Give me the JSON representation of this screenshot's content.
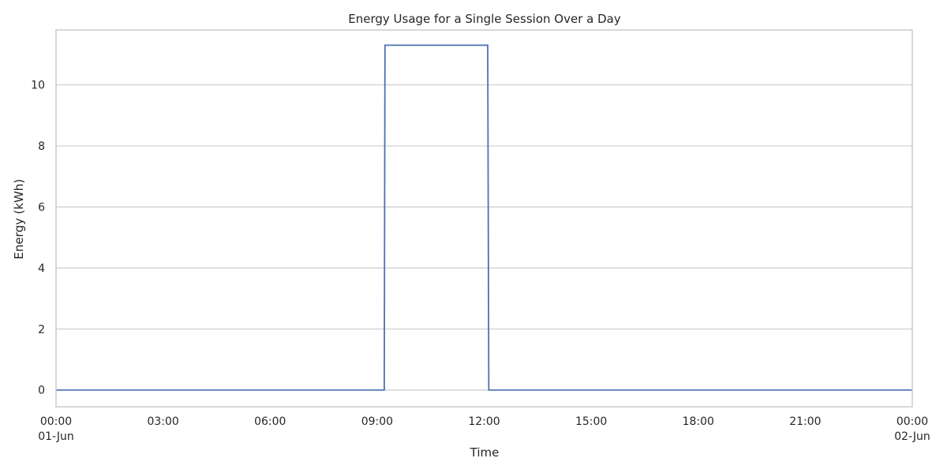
{
  "chart_data": {
    "type": "line",
    "title": "Energy Usage for a Single Session Over a Day",
    "xlabel": "Time",
    "ylabel": "Energy (kWh)",
    "grid": "horizontal",
    "x_unit": "hours since 00:00 01-Jun",
    "xlim": [
      0,
      24
    ],
    "ylim": [
      -0.55,
      11.8
    ],
    "x_ticks": [
      {
        "value": 0,
        "label": "00:00",
        "sublabel": "01-Jun"
      },
      {
        "value": 3,
        "label": "03:00",
        "sublabel": ""
      },
      {
        "value": 6,
        "label": "06:00",
        "sublabel": ""
      },
      {
        "value": 9,
        "label": "09:00",
        "sublabel": ""
      },
      {
        "value": 12,
        "label": "12:00",
        "sublabel": ""
      },
      {
        "value": 15,
        "label": "15:00",
        "sublabel": ""
      },
      {
        "value": 18,
        "label": "18:00",
        "sublabel": ""
      },
      {
        "value": 21,
        "label": "21:00",
        "sublabel": ""
      },
      {
        "value": 24,
        "label": "00:00",
        "sublabel": "02-Jun"
      }
    ],
    "y_ticks": [
      {
        "value": 0,
        "label": "0"
      },
      {
        "value": 2,
        "label": "2"
      },
      {
        "value": 4,
        "label": "4"
      },
      {
        "value": 6,
        "label": "6"
      },
      {
        "value": 8,
        "label": "8"
      },
      {
        "value": 10,
        "label": "10"
      }
    ],
    "series": [
      {
        "name": "Energy",
        "color": "#4c72b0",
        "x": [
          0,
          9.2,
          9.22,
          12.1,
          12.13,
          24
        ],
        "y": [
          0,
          0,
          11.3,
          11.3,
          0,
          0
        ]
      }
    ]
  }
}
